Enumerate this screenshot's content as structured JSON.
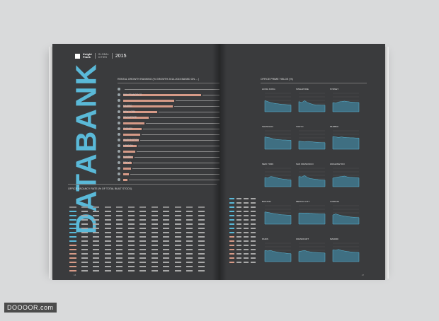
{
  "brand": {
    "name_line1": "Knight",
    "name_line2": "Frank",
    "sub_line1": "GLOBAL",
    "sub_line2": "CITIES",
    "year": "2015"
  },
  "left_page": {
    "title": "DATABANK",
    "chart_title": "RENTAL GROWTH RANKING (% GROWTH 2014-2015 BASED ON ... )",
    "rows": [
      {
        "label": "",
        "value": "",
        "level": 0
      },
      {
        "label": "SAN FRANCISCO",
        "value": "38.2%",
        "level": 0.92
      },
      {
        "label": "",
        "value": "",
        "level": 0.6
      },
      {
        "label": "MADRID",
        "value": "30.7%",
        "level": 0.58
      },
      {
        "label": "NEW YORK",
        "value": "",
        "level": 0.4
      },
      {
        "label": "SINGAPORE",
        "value": "28.2%",
        "level": 0.3
      },
      {
        "label": "",
        "value": "25.0%",
        "level": 0.25
      },
      {
        "label": "SYDNEY",
        "value": "22.2%",
        "level": 0.22
      },
      {
        "label": "",
        "value": "",
        "level": 0.2
      },
      {
        "label": "WASHINGTON",
        "value": "18.6%",
        "level": 0.18
      },
      {
        "label": "LONDON",
        "value": "",
        "level": 0.16
      },
      {
        "label": "",
        "value": "16.3%",
        "level": 0.14
      },
      {
        "label": "MUMBAI",
        "value": "",
        "level": 0.12
      },
      {
        "label": "TOKYO",
        "value": "14.0%",
        "level": 0.1
      },
      {
        "label": "",
        "value": "13.6%",
        "level": 0.09
      },
      {
        "label": "",
        "value": "",
        "level": 0.07
      },
      {
        "label": "",
        "value": "10.6%",
        "level": 0.05
      }
    ],
    "table_title": "OFFICE VACANCY RATE (% OF TOTAL BUILT STOCK)",
    "page_number": "16"
  },
  "right_page": {
    "chart_title": "OFFICE PRIME YIELDS (%)",
    "cities": [
      "HONG KONG",
      "SINGAPORE",
      "SYDNEY",
      "SHANGHAI",
      "TOKYO",
      "MUMBAI",
      "NEW YORK",
      "SAN FRANCISCO",
      "WASHINGTON",
      "BOSTON",
      "MEXICO CITY",
      "LONDON",
      "PARIS",
      "FRANKFURT",
      "MADRID"
    ],
    "page_number": "17"
  },
  "watermark": "DOOOOR.com",
  "colors": {
    "page": "#3a3b3d",
    "accent_blue": "#5ab9d8",
    "accent_salmon": "#d69a87",
    "chart_fill": "#3f6f82"
  }
}
